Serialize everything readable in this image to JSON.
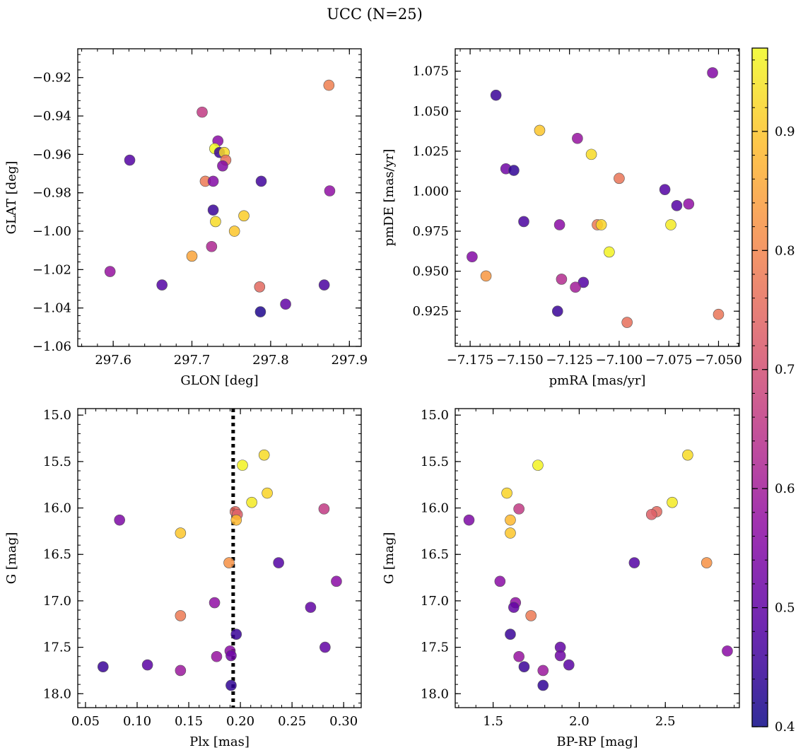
{
  "figure": {
    "title": "UCC (N=25)"
  },
  "colorbar": {
    "min": 0.4,
    "max": 0.97,
    "colormap": "plasma",
    "ticks": [
      0.4,
      0.5,
      0.6,
      0.7,
      0.8,
      0.9
    ],
    "tick_labels": [
      "0.4",
      "0.5",
      "0.6",
      "0.7",
      "0.8",
      "0.9"
    ]
  },
  "chart_data": [
    {
      "type": "scatter",
      "xlabel": "GLON [deg]",
      "ylabel": "GLAT [deg]",
      "xlim": [
        297.555,
        297.915
      ],
      "ylim": [
        -1.06,
        -0.905
      ],
      "xticks": [
        297.6,
        297.7,
        297.8,
        297.9
      ],
      "xtick_labels": [
        "297.6",
        "297.7",
        "297.8",
        "297.9"
      ],
      "yticks": [
        -1.06,
        -1.04,
        -1.02,
        -1.0,
        -0.98,
        -0.96,
        -0.94,
        -0.92
      ],
      "ytick_labels": [
        "−1.06",
        "−1.04",
        "−1.02",
        "−1.00",
        "−0.98",
        "−0.96",
        "−0.94",
        "−0.92"
      ],
      "points": [
        {
          "x": 297.874,
          "y": -0.924,
          "c": 0.79
        },
        {
          "x": 297.713,
          "y": -0.938,
          "c": 0.66
        },
        {
          "x": 297.733,
          "y": -0.953,
          "c": 0.56
        },
        {
          "x": 297.729,
          "y": -0.957,
          "c": 0.97
        },
        {
          "x": 297.735,
          "y": -0.959,
          "c": 0.45
        },
        {
          "x": 297.741,
          "y": -0.959,
          "c": 0.93
        },
        {
          "x": 297.621,
          "y": -0.963,
          "c": 0.48
        },
        {
          "x": 297.743,
          "y": -0.963,
          "c": 0.76
        },
        {
          "x": 297.739,
          "y": -0.966,
          "c": 0.55
        },
        {
          "x": 297.717,
          "y": -0.974,
          "c": 0.78
        },
        {
          "x": 297.727,
          "y": -0.974,
          "c": 0.55
        },
        {
          "x": 297.788,
          "y": -0.974,
          "c": 0.46
        },
        {
          "x": 297.875,
          "y": -0.979,
          "c": 0.57
        },
        {
          "x": 297.727,
          "y": -0.989,
          "c": 0.45
        },
        {
          "x": 297.766,
          "y": -0.992,
          "c": 0.91
        },
        {
          "x": 297.73,
          "y": -0.995,
          "c": 0.93
        },
        {
          "x": 297.754,
          "y": -1.0,
          "c": 0.9
        },
        {
          "x": 297.725,
          "y": -1.008,
          "c": 0.62
        },
        {
          "x": 297.7,
          "y": -1.013,
          "c": 0.85
        },
        {
          "x": 297.596,
          "y": -1.021,
          "c": 0.58
        },
        {
          "x": 297.786,
          "y": -1.029,
          "c": 0.75
        },
        {
          "x": 297.662,
          "y": -1.028,
          "c": 0.48
        },
        {
          "x": 297.868,
          "y": -1.028,
          "c": 0.47
        },
        {
          "x": 297.819,
          "y": -1.038,
          "c": 0.5
        },
        {
          "x": 297.787,
          "y": -1.042,
          "c": 0.42
        }
      ]
    },
    {
      "type": "scatter",
      "xlabel": "pmRA [mas/yr]",
      "ylabel": "pmDE [mas/yr]",
      "xlim": [
        -7.1825,
        -7.0395
      ],
      "ylim": [
        0.903,
        1.089
      ],
      "xticks": [
        -7.175,
        -7.15,
        -7.125,
        -7.1,
        -7.075,
        -7.05
      ],
      "xtick_labels": [
        "−7.175",
        "−7.150",
        "−7.125",
        "−7.100",
        "−7.075",
        "−7.050"
      ],
      "yticks": [
        0.925,
        0.95,
        0.975,
        1.0,
        1.025,
        1.05,
        1.075
      ],
      "ytick_labels": [
        "0.925",
        "0.950",
        "0.975",
        "1.000",
        "1.025",
        "1.050",
        "1.075"
      ],
      "points": [
        {
          "x": -7.053,
          "y": 1.074,
          "c": 0.55
        },
        {
          "x": -7.162,
          "y": 1.06,
          "c": 0.45
        },
        {
          "x": -7.14,
          "y": 1.038,
          "c": 0.9
        },
        {
          "x": -7.121,
          "y": 1.033,
          "c": 0.58
        },
        {
          "x": -7.114,
          "y": 1.023,
          "c": 0.93
        },
        {
          "x": -7.157,
          "y": 1.014,
          "c": 0.52
        },
        {
          "x": -7.153,
          "y": 1.013,
          "c": 0.44
        },
        {
          "x": -7.1,
          "y": 1.008,
          "c": 0.77
        },
        {
          "x": -7.077,
          "y": 1.001,
          "c": 0.48
        },
        {
          "x": -7.065,
          "y": 0.992,
          "c": 0.57
        },
        {
          "x": -7.071,
          "y": 0.991,
          "c": 0.48
        },
        {
          "x": -7.148,
          "y": 0.981,
          "c": 0.47
        },
        {
          "x": -7.13,
          "y": 0.979,
          "c": 0.56
        },
        {
          "x": -7.111,
          "y": 0.979,
          "c": 0.78
        },
        {
          "x": -7.109,
          "y": 0.979,
          "c": 0.92
        },
        {
          "x": -7.074,
          "y": 0.979,
          "c": 0.95
        },
        {
          "x": -7.105,
          "y": 0.962,
          "c": 0.96
        },
        {
          "x": -7.174,
          "y": 0.959,
          "c": 0.55
        },
        {
          "x": -7.167,
          "y": 0.947,
          "c": 0.83
        },
        {
          "x": -7.129,
          "y": 0.945,
          "c": 0.63
        },
        {
          "x": -7.118,
          "y": 0.943,
          "c": 0.48
        },
        {
          "x": -7.122,
          "y": 0.94,
          "c": 0.6
        },
        {
          "x": -7.131,
          "y": 0.925,
          "c": 0.45
        },
        {
          "x": -7.096,
          "y": 0.918,
          "c": 0.76
        },
        {
          "x": -7.05,
          "y": 0.923,
          "c": 0.77
        }
      ]
    },
    {
      "type": "scatter",
      "xlabel": "Plx [mas]",
      "ylabel": "G [mag]",
      "xlim": [
        0.0425,
        0.317
      ],
      "ylim": [
        18.15,
        14.93
      ],
      "xticks": [
        0.05,
        0.1,
        0.15,
        0.2,
        0.25,
        0.3
      ],
      "xtick_labels": [
        "0.05",
        "0.10",
        "0.15",
        "0.20",
        "0.25",
        "0.30"
      ],
      "yticks": [
        15.0,
        15.5,
        16.0,
        16.5,
        17.0,
        17.5,
        18.0
      ],
      "ytick_labels": [
        "15.0",
        "15.5",
        "16.0",
        "16.5",
        "17.0",
        "17.5",
        "18.0"
      ],
      "vline": {
        "x": 0.193,
        "style": "dotted"
      },
      "points": [
        {
          "x": 0.223,
          "y": 15.43,
          "c": 0.93
        },
        {
          "x": 0.202,
          "y": 15.54,
          "c": 0.96
        },
        {
          "x": 0.226,
          "y": 15.84,
          "c": 0.92
        },
        {
          "x": 0.211,
          "y": 15.94,
          "c": 0.95
        },
        {
          "x": 0.281,
          "y": 16.01,
          "c": 0.66
        },
        {
          "x": 0.195,
          "y": 16.04,
          "c": 0.75
        },
        {
          "x": 0.197,
          "y": 16.07,
          "c": 0.73
        },
        {
          "x": 0.196,
          "y": 16.13,
          "c": 0.88
        },
        {
          "x": 0.083,
          "y": 16.13,
          "c": 0.54
        },
        {
          "x": 0.142,
          "y": 16.27,
          "c": 0.9
        },
        {
          "x": 0.189,
          "y": 16.59,
          "c": 0.82
        },
        {
          "x": 0.237,
          "y": 16.59,
          "c": 0.48
        },
        {
          "x": 0.293,
          "y": 16.79,
          "c": 0.56
        },
        {
          "x": 0.175,
          "y": 17.02,
          "c": 0.57
        },
        {
          "x": 0.268,
          "y": 17.07,
          "c": 0.5
        },
        {
          "x": 0.142,
          "y": 17.16,
          "c": 0.78
        },
        {
          "x": 0.196,
          "y": 17.36,
          "c": 0.45
        },
        {
          "x": 0.282,
          "y": 17.5,
          "c": 0.5
        },
        {
          "x": 0.19,
          "y": 17.54,
          "c": 0.56
        },
        {
          "x": 0.191,
          "y": 17.59,
          "c": 0.52
        },
        {
          "x": 0.177,
          "y": 17.6,
          "c": 0.58
        },
        {
          "x": 0.11,
          "y": 17.69,
          "c": 0.49
        },
        {
          "x": 0.067,
          "y": 17.71,
          "c": 0.45
        },
        {
          "x": 0.142,
          "y": 17.75,
          "c": 0.59
        },
        {
          "x": 0.191,
          "y": 17.91,
          "c": 0.44
        }
      ]
    },
    {
      "type": "scatter",
      "xlabel": "BP-RP [mag]",
      "ylabel": "G [mag]",
      "xlim": [
        1.28,
        2.93
      ],
      "ylim": [
        18.15,
        14.93
      ],
      "xticks": [
        1.5,
        2.0,
        2.5
      ],
      "xtick_labels": [
        "1.5",
        "2.0",
        "2.5"
      ],
      "yticks": [
        15.0,
        15.5,
        16.0,
        16.5,
        17.0,
        17.5,
        18.0
      ],
      "ytick_labels": [
        "15.0",
        "15.5",
        "16.0",
        "16.5",
        "17.0",
        "17.5",
        "18.0"
      ],
      "points": [
        {
          "x": 2.63,
          "y": 15.43,
          "c": 0.93
        },
        {
          "x": 1.76,
          "y": 15.54,
          "c": 0.96
        },
        {
          "x": 1.58,
          "y": 15.84,
          "c": 0.92
        },
        {
          "x": 2.54,
          "y": 15.94,
          "c": 0.95
        },
        {
          "x": 1.65,
          "y": 16.01,
          "c": 0.66
        },
        {
          "x": 2.45,
          "y": 16.04,
          "c": 0.75
        },
        {
          "x": 2.42,
          "y": 16.07,
          "c": 0.73
        },
        {
          "x": 1.6,
          "y": 16.13,
          "c": 0.88
        },
        {
          "x": 1.36,
          "y": 16.13,
          "c": 0.54
        },
        {
          "x": 1.6,
          "y": 16.27,
          "c": 0.9
        },
        {
          "x": 2.74,
          "y": 16.59,
          "c": 0.82
        },
        {
          "x": 2.32,
          "y": 16.59,
          "c": 0.48
        },
        {
          "x": 1.54,
          "y": 16.79,
          "c": 0.56
        },
        {
          "x": 1.63,
          "y": 17.02,
          "c": 0.57
        },
        {
          "x": 1.62,
          "y": 17.07,
          "c": 0.5
        },
        {
          "x": 1.72,
          "y": 17.16,
          "c": 0.78
        },
        {
          "x": 1.6,
          "y": 17.36,
          "c": 0.45
        },
        {
          "x": 1.89,
          "y": 17.5,
          "c": 0.5
        },
        {
          "x": 2.86,
          "y": 17.54,
          "c": 0.56
        },
        {
          "x": 1.89,
          "y": 17.59,
          "c": 0.52
        },
        {
          "x": 1.65,
          "y": 17.6,
          "c": 0.58
        },
        {
          "x": 1.94,
          "y": 17.69,
          "c": 0.49
        },
        {
          "x": 1.68,
          "y": 17.71,
          "c": 0.45
        },
        {
          "x": 1.79,
          "y": 17.75,
          "c": 0.59
        },
        {
          "x": 1.79,
          "y": 17.91,
          "c": 0.44
        }
      ]
    }
  ]
}
